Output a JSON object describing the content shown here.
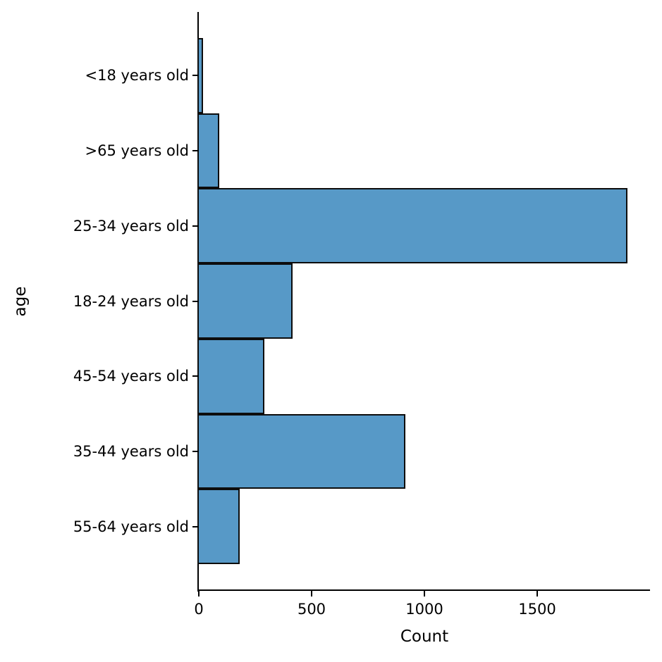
{
  "figure": {
    "background": "#ffffff",
    "bar_fill": "#5799c7",
    "bar_edge": "#0d0d0d",
    "axis_color": "#000000",
    "text_color": "#000000"
  },
  "chart_data": {
    "type": "bar",
    "orientation": "horizontal",
    "title": "",
    "xlabel": "Count",
    "ylabel": "age",
    "categories": [
      "<18 years old",
      ">65 years old",
      "25-34 years old",
      "18-24 years old",
      "45-54 years old",
      "35-44 years old",
      "55-64 years old"
    ],
    "values": [
      20,
      90,
      1900,
      415,
      290,
      915,
      180
    ],
    "xlim": [
      0,
      2000
    ],
    "xticks": [
      0,
      500,
      1000,
      1500
    ],
    "grid": false,
    "legend": null,
    "bars_touch": true,
    "spines": [
      "left",
      "bottom"
    ]
  }
}
